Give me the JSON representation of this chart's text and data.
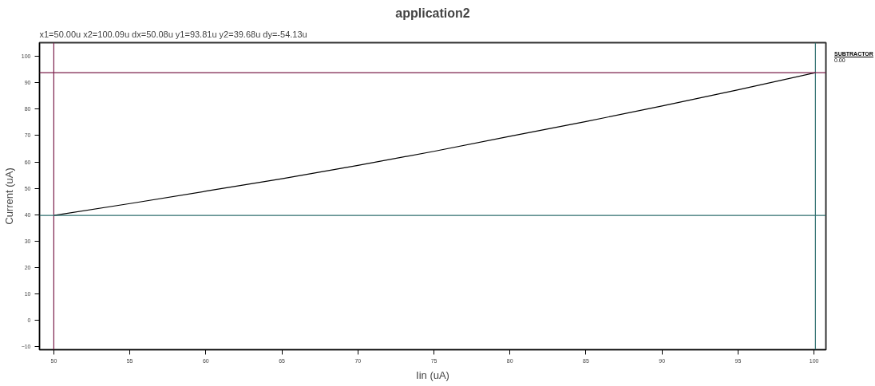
{
  "chart_data": {
    "type": "line",
    "title": "application2",
    "xlabel": "Iin (uA)",
    "ylabel": "Current (uA)",
    "x": [
      50,
      55,
      60,
      65,
      70,
      75,
      80,
      85,
      90,
      95,
      100.09
    ],
    "series": [
      {
        "color": "#000000",
        "values": [
          39.7,
          44.2,
          48.9,
          53.6,
          58.7,
          64.0,
          69.7,
          75.3,
          81.2,
          87.3,
          93.8
        ]
      }
    ],
    "xlim": [
      49.06,
      100.78
    ],
    "ylim": [
      -11.2,
      105.2
    ],
    "xticks": [
      50,
      55,
      60,
      65,
      70,
      75,
      80,
      85,
      90,
      95,
      100
    ],
    "yticks": [
      -10,
      0,
      10,
      20,
      30,
      40,
      50,
      60,
      70,
      80,
      90,
      100
    ],
    "ref_lines": [
      {
        "axis": "x",
        "value": 50,
        "color": "#7b1f4a"
      },
      {
        "axis": "x",
        "value": 100.09,
        "color": "#2e6e6e"
      },
      {
        "axis": "y",
        "value": 93.81,
        "color": "#7b1f4a"
      },
      {
        "axis": "y",
        "value": 39.68,
        "color": "#2e6e6e"
      }
    ],
    "annotations": [
      "x1=50.00u      x2=100.09u      dx=50.08u        y1=93.81u        y2=39.68u       dy=-54.13u",
      "SUBTRACTOR",
      "0.00"
    ],
    "grid": false,
    "marker": "none",
    "line_style": "solid"
  }
}
